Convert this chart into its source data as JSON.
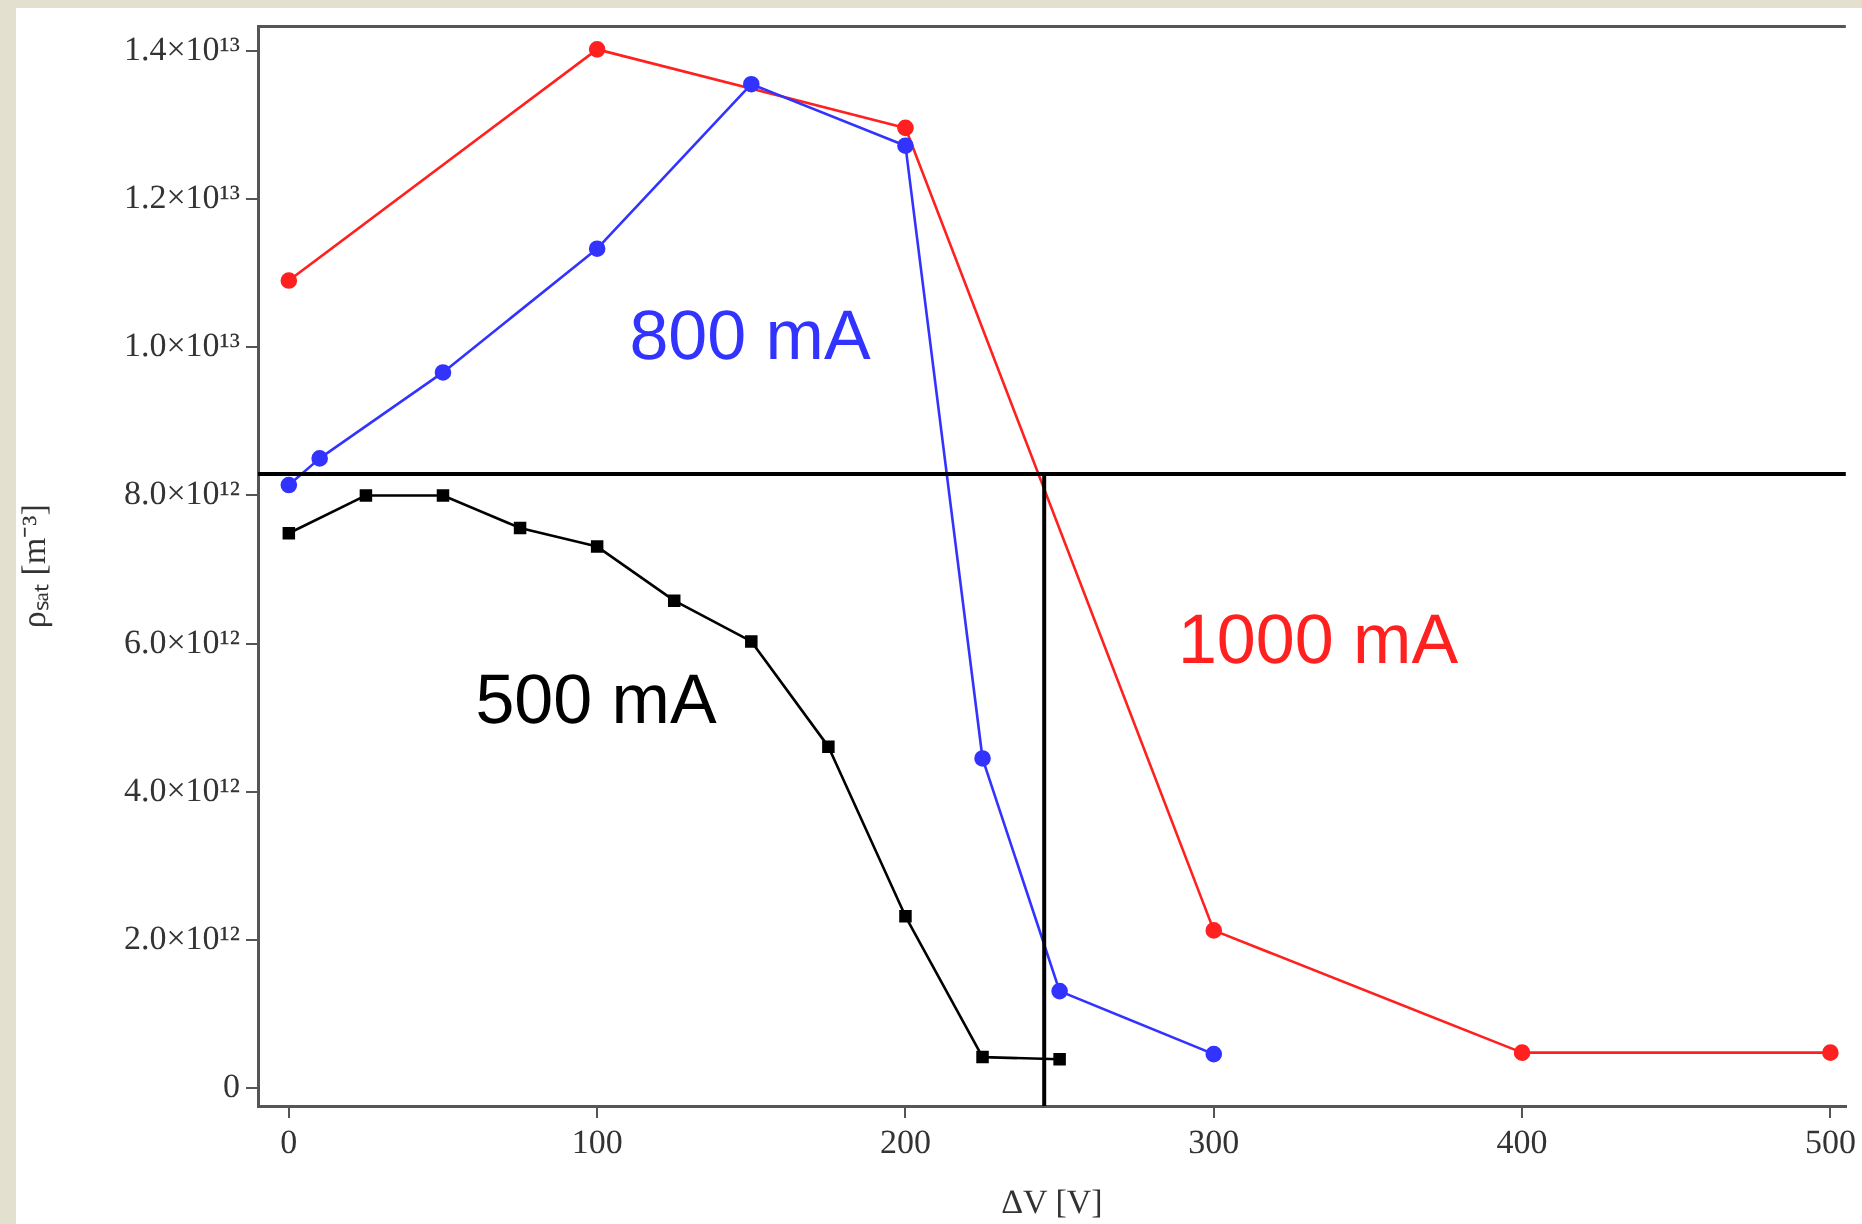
{
  "chart_data": {
    "type": "line",
    "xlabel": "ΔV [V]",
    "ylabel": "ρₛₐₜ [m⁻³]",
    "xlim": [
      -10,
      505
    ],
    "xticks": [
      0,
      100,
      200,
      300,
      400,
      500
    ],
    "ylim": [
      -240000000000.0,
      14330000000000.0
    ],
    "yticks": [
      {
        "value": 0,
        "label": "0"
      },
      {
        "value": 2000000000000.0,
        "label": "2.0×10¹²"
      },
      {
        "value": 4000000000000.0,
        "label": "4.0×10¹²"
      },
      {
        "value": 6000000000000.0,
        "label": "6.0×10¹²"
      },
      {
        "value": 8000000000000.0,
        "label": "8.0×10¹²"
      },
      {
        "value": 10000000000000.0,
        "label": "1.0×10¹³"
      },
      {
        "value": 12000000000000.0,
        "label": "1.2×10¹³"
      },
      {
        "value": 14000000000000.0,
        "label": "1.4×10¹³"
      }
    ],
    "series": [
      {
        "name": "500 mA",
        "color": "#000000",
        "marker": "square",
        "x": [
          0,
          25,
          50,
          75,
          100,
          125,
          150,
          175,
          200,
          225,
          250
        ],
        "values": [
          7490000000000.0,
          8000000000000.0,
          8000000000000.0,
          7560000000000.0,
          7310000000000.0,
          6580000000000.0,
          6030000000000.0,
          4610000000000.0,
          2320000000000.0,
          420000000000.0,
          390000000000.0
        ]
      },
      {
        "name": "800 mA",
        "color": "#3333ff",
        "marker": "circle",
        "x": [
          0,
          10,
          50,
          100,
          150,
          200,
          225,
          250,
          300
        ],
        "values": [
          8140000000000.0,
          8500000000000.0,
          9660000000000.0,
          11330000000000.0,
          13550000000000.0,
          12720000000000.0,
          4450000000000.0,
          1310000000000.0,
          460000000000.0
        ]
      },
      {
        "name": "1000 mA",
        "color": "#ff2020",
        "marker": "circle",
        "x": [
          0,
          100,
          200,
          300,
          400,
          500
        ],
        "values": [
          10900000000000.0,
          14020000000000.0,
          12960000000000.0,
          2130000000000.0,
          480000000000.0,
          480000000000.0
        ]
      }
    ],
    "ref_lines": [
      {
        "axis": "y",
        "value": 8290000000000.0,
        "color": "#000000"
      },
      {
        "axis": "x",
        "value": 245,
        "color": "#000000"
      }
    ]
  }
}
